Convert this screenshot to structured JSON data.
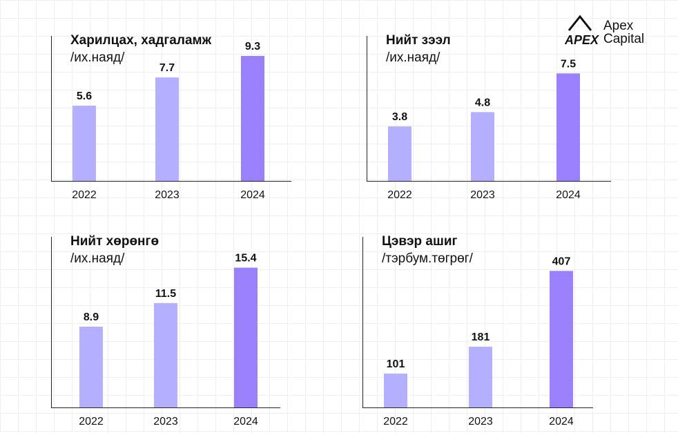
{
  "brand": {
    "mark": "APEX",
    "name_line1": "Apex",
    "name_line2": "Capital"
  },
  "colors": {
    "bar_light": "#b4b0ff",
    "bar_accent": "#9b80fb",
    "axis": "#222222",
    "text": "#111111"
  },
  "chart_data": [
    {
      "type": "bar",
      "title": "Харилцах, хадгаламж",
      "unit": "/их.наяд/",
      "categories": [
        "2022",
        "2023",
        "2024"
      ],
      "values": [
        5.6,
        7.7,
        9.3
      ],
      "value_labels": [
        "5.6",
        "7.7",
        "9.3"
      ],
      "highlight_index": 2,
      "ylim": [
        0,
        11.2
      ]
    },
    {
      "type": "bar",
      "title": "Нийт зээл",
      "unit": "/их.наяд/",
      "categories": [
        "2022",
        "2023",
        "2024"
      ],
      "values": [
        3.8,
        4.8,
        7.5
      ],
      "value_labels": [
        "3.8",
        "4.8",
        "7.5"
      ],
      "highlight_index": 2,
      "ylim": [
        0,
        10.5
      ]
    },
    {
      "type": "bar",
      "title": "Нийт хөрөнгө",
      "unit": "/их.наяд/",
      "categories": [
        "2022",
        "2023",
        "2024"
      ],
      "values": [
        8.9,
        11.5,
        15.4
      ],
      "value_labels": [
        "8.9",
        "11.5",
        "15.4"
      ],
      "highlight_index": 2,
      "ylim": [
        0,
        19.4
      ]
    },
    {
      "type": "bar",
      "title": "Цэвэр ашиг",
      "unit": "/тэрбум.төгрөг/",
      "categories": [
        "2022",
        "2023",
        "2024"
      ],
      "values": [
        101,
        181,
        407
      ],
      "value_labels": [
        "101",
        "181",
        "407"
      ],
      "highlight_index": 2,
      "ylim": [
        0,
        525
      ]
    }
  ]
}
